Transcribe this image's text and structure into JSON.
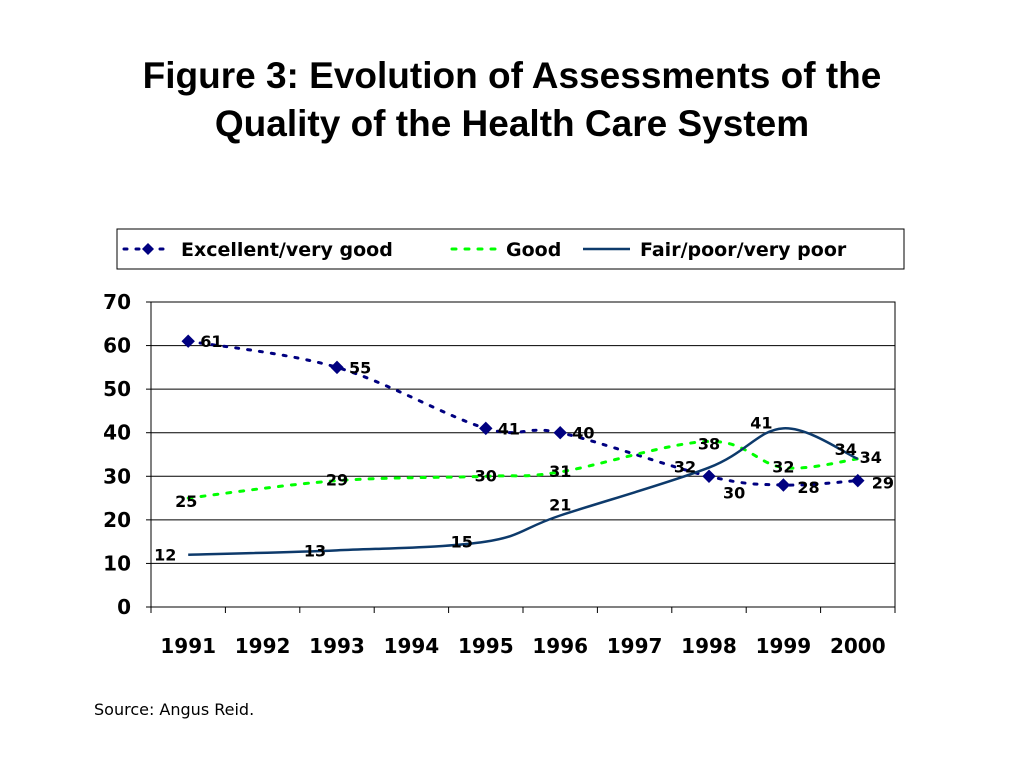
{
  "title_lines": [
    "Figure 3: Evolution of Assessments of the",
    "Quality of the Health Care System"
  ],
  "source": "Source: Angus Reid.",
  "colors": {
    "excellent": "#000080",
    "good": "#00ff00",
    "fair": "#0d3a6b",
    "grid": "#000000"
  },
  "chart_data": {
    "type": "line",
    "title": "Figure 3: Evolution of Assessments of the Quality of the Health Care System",
    "categories": [
      "1991",
      "1992",
      "1993",
      "1994",
      "1995",
      "1996",
      "1997",
      "1998",
      "1999",
      "2000"
    ],
    "yticks": [
      "0",
      "10",
      "20",
      "30",
      "40",
      "50",
      "60",
      "70"
    ],
    "ylim": [
      0,
      70
    ],
    "grid": true,
    "legend_position": "top",
    "series": [
      {
        "name": "Excellent/very good",
        "style": "dotted-with-diamond-markers",
        "points": [
          {
            "x": "1991",
            "y": 61,
            "label": "61"
          },
          {
            "x": "1993",
            "y": 55,
            "label": "55"
          },
          {
            "x": "1995",
            "y": 41,
            "label": "41"
          },
          {
            "x": "1996",
            "y": 40,
            "label": "40"
          },
          {
            "x": "1998",
            "y": 30,
            "label": "30"
          },
          {
            "x": "1999",
            "y": 28,
            "label": "28"
          },
          {
            "x": "2000",
            "y": 29,
            "label": "29"
          }
        ]
      },
      {
        "name": "Good",
        "style": "dashed",
        "points": [
          {
            "x": "1991",
            "y": 25,
            "label": "25"
          },
          {
            "x": "1993",
            "y": 29,
            "label": "29"
          },
          {
            "x": "1995",
            "y": 30,
            "label": "30"
          },
          {
            "x": "1996",
            "y": 31,
            "label": "31"
          },
          {
            "x": "1998",
            "y": 38,
            "label": "38"
          },
          {
            "x": "1999",
            "y": 32,
            "label": "32"
          },
          {
            "x": "2000",
            "y": 34,
            "label": "34"
          }
        ]
      },
      {
        "name": "Fair/poor/very poor",
        "style": "solid",
        "points": [
          {
            "x": "1991",
            "y": 12,
            "label": "12"
          },
          {
            "x": "1993",
            "y": 13,
            "label": "13"
          },
          {
            "x": "1995",
            "y": 15,
            "label": "15"
          },
          {
            "x": "1996",
            "y": 21,
            "label": "21"
          },
          {
            "x": "1998",
            "y": 32,
            "label": "32"
          },
          {
            "x": "1999",
            "y": 41,
            "label": "41"
          },
          {
            "x": "2000",
            "y": 34,
            "label": "34"
          }
        ]
      }
    ]
  }
}
